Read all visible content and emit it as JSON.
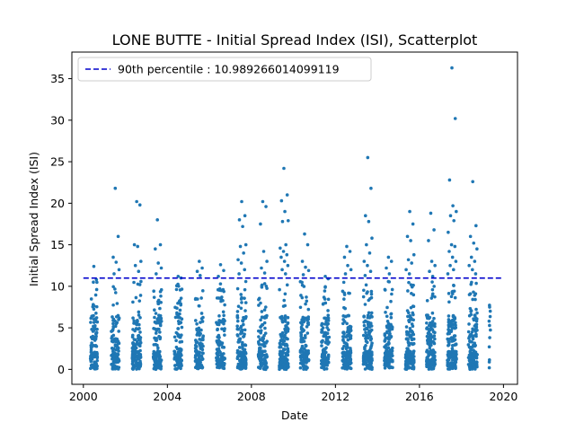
{
  "chart_data": {
    "type": "scatter",
    "title": "LONE BUTTE - Initial Spread Index (ISI), Scatterplot",
    "xlabel": "Date",
    "ylabel": "Initial Spread Index (ISI)",
    "xlim": [
      "1999-06-15",
      "2020-09-01"
    ],
    "ylim": [
      -1.8,
      38.2
    ],
    "xticks": [
      "2000",
      "2004",
      "2008",
      "2012",
      "2016",
      "2020"
    ],
    "yticks": [
      0,
      5,
      10,
      15,
      20,
      25,
      30,
      35
    ],
    "point_color": "#1f77b4",
    "reference_line": {
      "label": "90th percentile : 10.989266014099119",
      "y": 10.989266014099119,
      "x_start": "2000-01-01",
      "x_end": "2020-01-01",
      "color": "#0000cc",
      "style": "dashed"
    },
    "legend": {
      "placement": "top-left"
    },
    "grid": false,
    "seasons": [
      {
        "year": 2000,
        "start": "2000-05-01",
        "end": "2000-08-31",
        "count": 110,
        "max": 12.4,
        "outliers": [
          12.4,
          10.8
        ]
      },
      {
        "year": 2001,
        "start": "2001-05-01",
        "end": "2001-09-15",
        "count": 120,
        "max": 21.8,
        "outliers": [
          21.8,
          16.0,
          13.5,
          12.9,
          12.0,
          11.5
        ]
      },
      {
        "year": 2002,
        "start": "2002-05-01",
        "end": "2002-09-30",
        "count": 135,
        "max": 20.2,
        "outliers": [
          20.2,
          19.8,
          15.0,
          14.8,
          13.0,
          12.5,
          11.8
        ]
      },
      {
        "year": 2003,
        "start": "2003-05-01",
        "end": "2003-09-20",
        "count": 125,
        "max": 18.0,
        "outliers": [
          18.0,
          15.0,
          14.5,
          12.8,
          12.2,
          11.5
        ]
      },
      {
        "year": 2004,
        "start": "2004-05-01",
        "end": "2004-09-10",
        "count": 110,
        "max": 11.2,
        "outliers": [
          11.2,
          11.0
        ]
      },
      {
        "year": 2005,
        "start": "2005-05-01",
        "end": "2005-09-15",
        "count": 115,
        "max": 13.0,
        "outliers": [
          13.0,
          12.2,
          11.8,
          11.3
        ]
      },
      {
        "year": 2006,
        "start": "2006-05-01",
        "end": "2006-09-25",
        "count": 125,
        "max": 12.6,
        "outliers": [
          12.6,
          11.9,
          11.2
        ]
      },
      {
        "year": 2007,
        "start": "2007-05-01",
        "end": "2007-09-30",
        "count": 150,
        "max": 20.2,
        "outliers": [
          20.2,
          18.5,
          18.0,
          17.2,
          15.0,
          14.8,
          14.0,
          13.2,
          12.8,
          12.0,
          11.5
        ]
      },
      {
        "year": 2008,
        "start": "2008-05-01",
        "end": "2008-09-30",
        "count": 130,
        "max": 20.2,
        "outliers": [
          20.2,
          19.6,
          17.5,
          14.2,
          13.0,
          12.2,
          11.6
        ]
      },
      {
        "year": 2009,
        "start": "2009-05-01",
        "end": "2009-10-05",
        "count": 160,
        "max": 24.2,
        "outliers": [
          24.2,
          21.0,
          20.3,
          19.0,
          17.9,
          17.8,
          15.0,
          14.6,
          14.2,
          13.8,
          13.5,
          13.0,
          12.5,
          12.0,
          11.5
        ]
      },
      {
        "year": 2010,
        "start": "2010-05-01",
        "end": "2010-09-25",
        "count": 130,
        "max": 16.3,
        "outliers": [
          16.3,
          15.0,
          13.0,
          12.3,
          11.9,
          11.4
        ]
      },
      {
        "year": 2011,
        "start": "2011-05-01",
        "end": "2011-09-15",
        "count": 115,
        "max": 11.2,
        "outliers": [
          11.2,
          10.9
        ]
      },
      {
        "year": 2012,
        "start": "2012-05-01",
        "end": "2012-09-30",
        "count": 140,
        "max": 14.8,
        "outliers": [
          14.8,
          14.2,
          13.5,
          12.5,
          12.0,
          11.5
        ]
      },
      {
        "year": 2013,
        "start": "2013-05-01",
        "end": "2013-09-30",
        "count": 150,
        "max": 25.5,
        "outliers": [
          25.5,
          21.8,
          18.5,
          17.8,
          15.8,
          15.0,
          14.0,
          13.0,
          12.5,
          11.8,
          11.3
        ]
      },
      {
        "year": 2014,
        "start": "2014-05-01",
        "end": "2014-09-20",
        "count": 130,
        "max": 13.5,
        "outliers": [
          13.5,
          13.0,
          12.2,
          11.5
        ]
      },
      {
        "year": 2015,
        "start": "2015-05-01",
        "end": "2015-09-30",
        "count": 155,
        "max": 19.0,
        "outliers": [
          19.0,
          17.5,
          16.0,
          15.5,
          13.8,
          13.2,
          12.8,
          12.0,
          11.5
        ]
      },
      {
        "year": 2016,
        "start": "2016-05-01",
        "end": "2016-09-30",
        "count": 145,
        "max": 18.8,
        "outliers": [
          18.8,
          16.8,
          15.5,
          13.0,
          12.5,
          11.8,
          11.2
        ]
      },
      {
        "year": 2017,
        "start": "2017-05-01",
        "end": "2017-10-05",
        "count": 165,
        "max": 36.3,
        "outliers": [
          36.3,
          30.2,
          22.8,
          19.7,
          19.0,
          18.5,
          17.9,
          16.5,
          15.0,
          14.8,
          14.2,
          13.5,
          13.0,
          12.5,
          12.0,
          11.5
        ]
      },
      {
        "year": 2018,
        "start": "2018-05-01",
        "end": "2018-09-30",
        "count": 145,
        "max": 22.6,
        "outliers": [
          22.6,
          17.3,
          16.0,
          15.2,
          14.5,
          13.5,
          13.0,
          12.5,
          12.0,
          11.5
        ]
      },
      {
        "year": 2019,
        "start": "2019-04-20",
        "end": "2019-05-20",
        "count": 12,
        "max": 7.5,
        "outliers": [
          7.5,
          7.0
        ]
      }
    ]
  }
}
